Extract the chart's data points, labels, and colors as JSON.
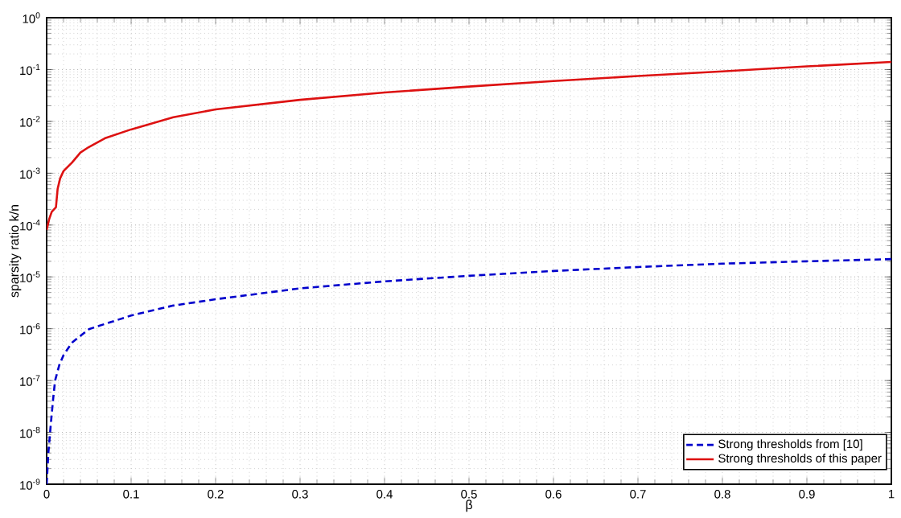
{
  "chart_data": {
    "type": "line",
    "xlabel": "β",
    "ylabel": "sparsity ratio k/n",
    "log": "y",
    "grid": true,
    "legend": "bottom right",
    "xlim": [
      0,
      1
    ],
    "ylim": [
      1e-09,
      1
    ],
    "xticks": [
      0,
      0.1,
      0.2,
      0.3,
      0.4,
      0.5,
      0.6,
      0.7,
      0.8,
      0.9,
      1
    ],
    "yticks": [
      {
        "value": 1e-09,
        "label": "10$^{-9}$"
      },
      {
        "value": 1e-08,
        "label": "10$^{-8}$"
      },
      {
        "value": 1e-07,
        "label": "10$^{-7}$"
      },
      {
        "value": 1e-06,
        "label": "10$^{-6}$"
      },
      {
        "value": 1e-05,
        "label": "10$^{-5}$"
      },
      {
        "value": 0.0001,
        "label": "10$^{-4}$"
      },
      {
        "value": 0.001,
        "label": "10$^{-3}$"
      },
      {
        "value": 0.01,
        "label": "10$^{-2}$"
      },
      {
        "value": 0.1,
        "label": "10$^{-1}$"
      },
      {
        "value": 1,
        "label": "10$^{0}$"
      }
    ],
    "series": [
      {
        "name": "Strong thresholds from [10]",
        "color": "#0000cc",
        "line_style": "dashed",
        "x": [
          0,
          0.002,
          0.005,
          0.008,
          0.01,
          0.015,
          0.02,
          0.03,
          0.05,
          0.1,
          0.15,
          0.2,
          0.3,
          0.4,
          0.5,
          0.6,
          0.7,
          0.8,
          0.9,
          1.0
        ],
        "values": [
          1e-09,
          4e-09,
          1.5e-08,
          5e-08,
          1e-07,
          2e-07,
          3.1e-07,
          5.4e-07,
          9.8e-07,
          1.8e-06,
          2.8e-06,
          3.7e-06,
          6e-06,
          8.2e-06,
          1.05e-05,
          1.3e-05,
          1.55e-05,
          1.8e-05,
          2e-05,
          2.2e-05
        ]
      },
      {
        "name": "Strong thresholds of this paper",
        "color": "#dd1111",
        "line_style": "solid",
        "x": [
          0,
          0.003,
          0.006,
          0.011,
          0.013,
          0.016,
          0.02,
          0.03,
          0.04,
          0.05,
          0.07,
          0.1,
          0.15,
          0.2,
          0.3,
          0.4,
          0.5,
          0.6,
          0.7,
          0.8,
          0.9,
          1.0
        ],
        "values": [
          8e-05,
          0.00013,
          0.00018,
          0.00022,
          0.0005,
          0.0008,
          0.0011,
          0.0016,
          0.0025,
          0.0032,
          0.0048,
          0.007,
          0.012,
          0.017,
          0.026,
          0.036,
          0.047,
          0.06,
          0.075,
          0.092,
          0.115,
          0.14
        ]
      }
    ]
  }
}
